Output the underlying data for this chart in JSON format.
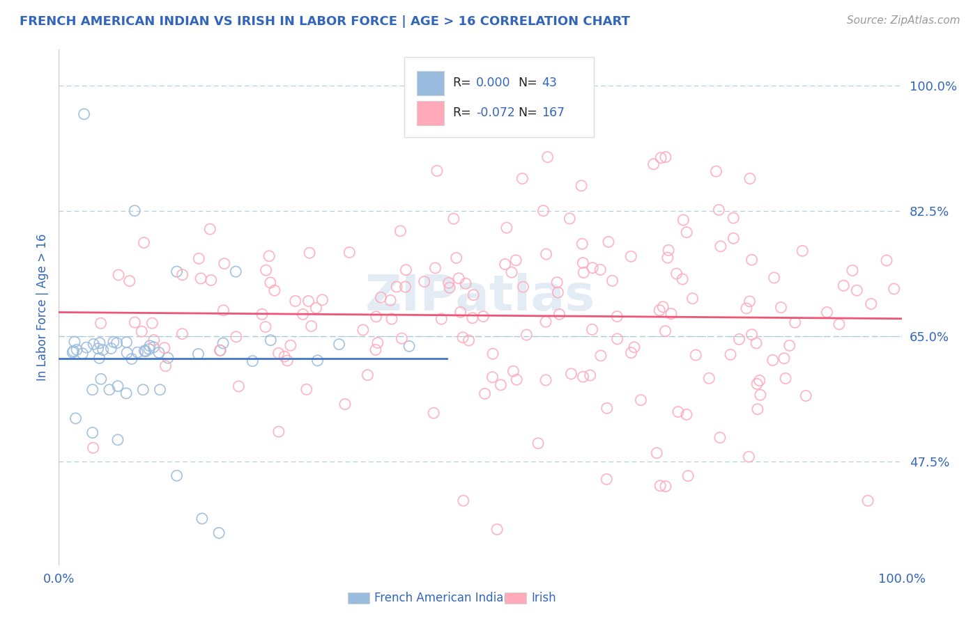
{
  "title": "FRENCH AMERICAN INDIAN VS IRISH IN LABOR FORCE | AGE > 16 CORRELATION CHART",
  "source": "Source: ZipAtlas.com",
  "ylabel": "In Labor Force | Age > 16",
  "yticks_labels": [
    "47.5%",
    "65.0%",
    "82.5%",
    "100.0%"
  ],
  "ytick_values": [
    0.475,
    0.65,
    0.825,
    1.0
  ],
  "blue_color": "#99BBDD",
  "pink_color": "#FFAABB",
  "trend_blue_color": "#4477CC",
  "trend_pink_color": "#EE5577",
  "dashed_line_color": "#AACCDD",
  "title_color": "#3366BB",
  "source_color": "#999999",
  "axis_color": "#CCCCCC",
  "legend_label_blue": "French American Indians",
  "legend_label_pink": "Irish",
  "legend_blue_r": "0.000",
  "legend_blue_n": "43",
  "legend_pink_r": "-0.072",
  "legend_pink_n": "167",
  "xlim": [
    0.0,
    1.0
  ],
  "ylim": [
    0.33,
    1.05
  ],
  "blue_trend_x_end": 0.46,
  "watermark": "ZIPatlas"
}
